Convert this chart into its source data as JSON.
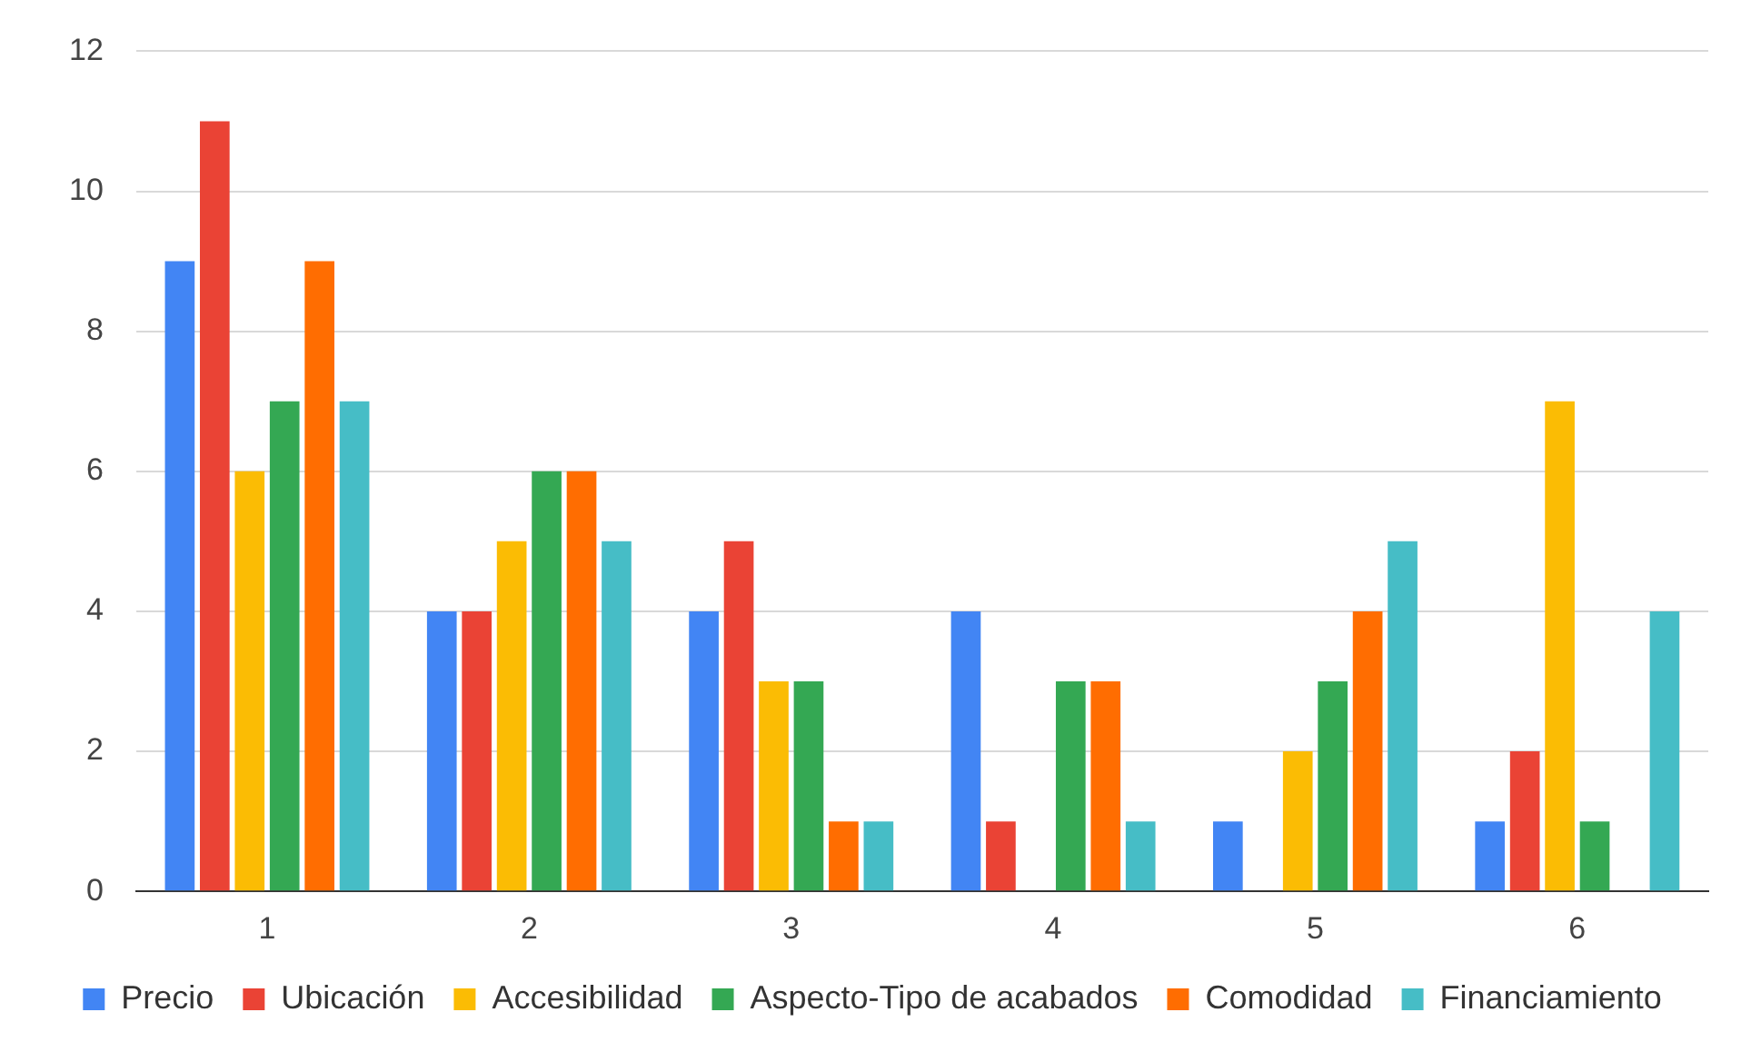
{
  "chart_data": {
    "type": "bar",
    "categories": [
      "1",
      "2",
      "3",
      "4",
      "5",
      "6"
    ],
    "series": [
      {
        "name": "Precio",
        "color": "#4285f4",
        "values": [
          9,
          4,
          4,
          4,
          1,
          1
        ]
      },
      {
        "name": "Ubicación",
        "color": "#ea4335",
        "values": [
          11,
          4,
          5,
          1,
          0,
          2
        ]
      },
      {
        "name": "Accesibilidad",
        "color": "#fbbc04",
        "values": [
          6,
          5,
          3,
          0,
          2,
          7
        ]
      },
      {
        "name": "Aspecto-Tipo de acabados",
        "color": "#34a853",
        "values": [
          7,
          6,
          3,
          3,
          3,
          1
        ]
      },
      {
        "name": "Comodidad",
        "color": "#ff6d01",
        "values": [
          9,
          6,
          1,
          3,
          4,
          0
        ]
      },
      {
        "name": "Financiamiento",
        "color": "#46bdc6",
        "values": [
          7,
          5,
          1,
          1,
          5,
          4
        ]
      }
    ],
    "ylim": [
      0,
      12
    ],
    "yticks": [
      0,
      2,
      4,
      6,
      8,
      10,
      12
    ],
    "grid": "y",
    "legend": "bottom"
  }
}
